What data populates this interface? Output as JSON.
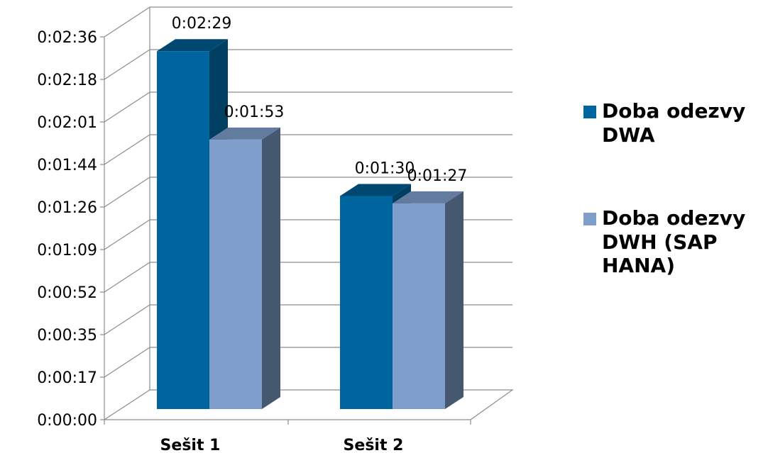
{
  "chart_data": {
    "type": "bar",
    "style": "3d-clustered-column",
    "categories": [
      "Sešit 1",
      "Sešit 2"
    ],
    "series": [
      {
        "name": "Doba odezvy DWA",
        "values_seconds": [
          149,
          90
        ],
        "labels": [
          "0:02:29",
          "0:01:30"
        ],
        "color": "#00649E"
      },
      {
        "name": "Doba odezvy DWH (SAP HANA)",
        "values_seconds": [
          113,
          87
        ],
        "labels": [
          "0:01:53",
          "0:01:27"
        ],
        "color": "#7F9ECB"
      }
    ],
    "yticks": [
      "0:00:00",
      "0:00:17",
      "0:00:35",
      "0:00:52",
      "0:01:09",
      "0:01:26",
      "0:01:44",
      "0:02:01",
      "0:02:18",
      "0:02:36"
    ],
    "ylim_seconds": [
      0,
      156
    ],
    "grid": true,
    "legend_position": "right"
  }
}
